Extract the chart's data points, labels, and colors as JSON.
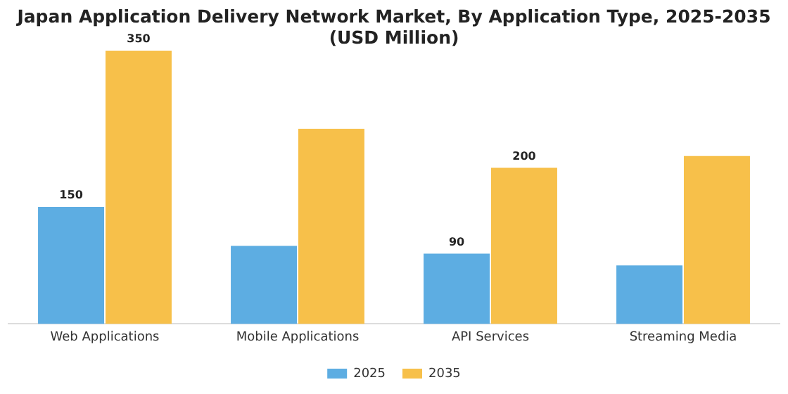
{
  "chart_data": {
    "type": "bar",
    "title": "Japan Application Delivery Network Market, By Application Type, 2025-2035 (USD Million)",
    "categories": [
      "Web Applications",
      "Mobile Applications",
      "API Services",
      "Streaming Media"
    ],
    "series": [
      {
        "name": "2025",
        "color": "#5dade2",
        "values": [
          150,
          100,
          90,
          75
        ],
        "value_labels": [
          "150",
          null,
          "90",
          null
        ]
      },
      {
        "name": "2035",
        "color": "#f7c04a",
        "values": [
          350,
          250,
          200,
          215
        ],
        "value_labels": [
          "350",
          null,
          "200",
          null
        ]
      }
    ],
    "legend": "bottom",
    "grid": false
  }
}
